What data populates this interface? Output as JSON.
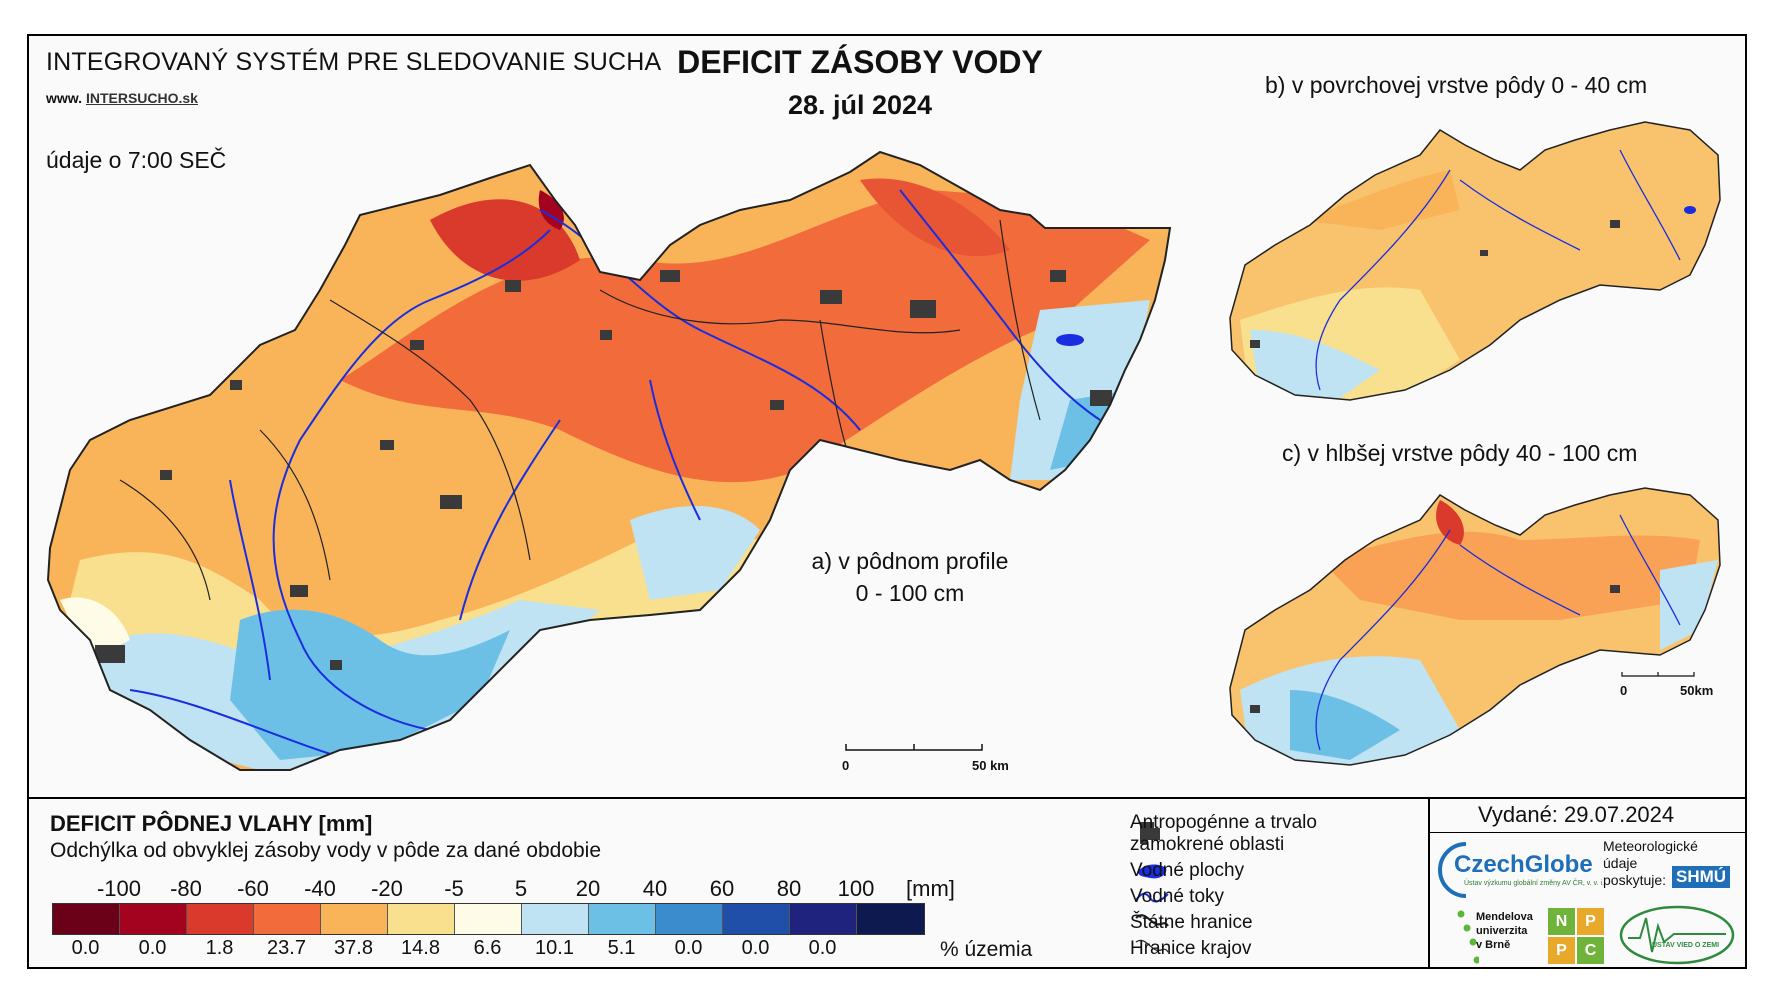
{
  "header": {
    "system_title": "INTEGROVANÝ SYSTÉM PRE SLEDOVANIE SUCHA",
    "website_prefix": "www.",
    "website_name": "INTERSUCHO.sk",
    "data_time": "údaje o 7:00 SEČ",
    "main_title": "DEFICIT ZÁSOBY VODY",
    "date": "28. júl 2024"
  },
  "maps": {
    "main_label_line1": "a) v pôdnom profile",
    "main_label_line2": "0 - 100 cm",
    "inset_b_label": "b) v povrchovej vrstve pôdy 0 - 40 cm",
    "inset_c_label": "c) v hlbšej vrstve pôdy 40 - 100 cm",
    "scale_main_start": "0",
    "scale_main_end": "50 km",
    "scale_inset_start": "0",
    "scale_inset_end": "50km"
  },
  "legend": {
    "title": "DEFICIT PÔDNEJ VLAHY [mm]",
    "subtitle": "Odchýlka od obvyklej zásoby vody v pôde za dané obdobie",
    "unit": "[mm]",
    "percent_label": "% územia",
    "boundaries": [
      "-100",
      "-80",
      "-60",
      "-40",
      "-20",
      "-5",
      "5",
      "20",
      "40",
      "60",
      "80",
      "100"
    ],
    "classes": [
      {
        "color": "#6b0019",
        "percent": "0.0"
      },
      {
        "color": "#a3031f",
        "percent": "0.0"
      },
      {
        "color": "#d93a2b",
        "percent": "1.8"
      },
      {
        "color": "#f26b3a",
        "percent": "23.7"
      },
      {
        "color": "#f9b45a",
        "percent": "37.8"
      },
      {
        "color": "#f9e08f",
        "percent": "14.8"
      },
      {
        "color": "#fefbe6",
        "percent": "6.6"
      },
      {
        "color": "#bfe3f2",
        "percent": "10.1"
      },
      {
        "color": "#6cc0e6",
        "percent": "5.1"
      },
      {
        "color": "#3a8ccd",
        "percent": "0.0"
      },
      {
        "color": "#1f4fa8",
        "percent": "0.0"
      },
      {
        "color": "#20237e",
        "percent": "0.0"
      },
      {
        "color": "#0d1a4f",
        "percent": ""
      }
    ]
  },
  "map_legend": {
    "urban_line1": "Antropogénne a trvalo",
    "urban_line2": "zamokrené oblasti",
    "water_bodies": "Vodné plochy",
    "rivers": "Vodné toky",
    "state_border": "Štátne hranice",
    "region_border": "Hranice krajov"
  },
  "publisher": {
    "issued": "Vydané: 29.07.2024",
    "czechglobe": "CzechGlobe",
    "czechglobe_sub": "Ústav výzkumu globální změny AV ČR, v. v. i.",
    "meteo_line1": "Meteorologické",
    "meteo_line2": "údaje",
    "meteo_line3": "poskytuje:",
    "shmu": "SHMÚ",
    "mendelu_line1": "Mendelova",
    "mendelu_line2": "univerzita",
    "mendelu_line3": "v Brně",
    "nppc_letters": [
      "N",
      "P",
      "P",
      "C"
    ],
    "uvz": "ÚSTAV VIED O ZEMI"
  },
  "colors": {
    "river": "#1a2ee0",
    "urban": "#3a3a3a",
    "border": "#222222"
  }
}
